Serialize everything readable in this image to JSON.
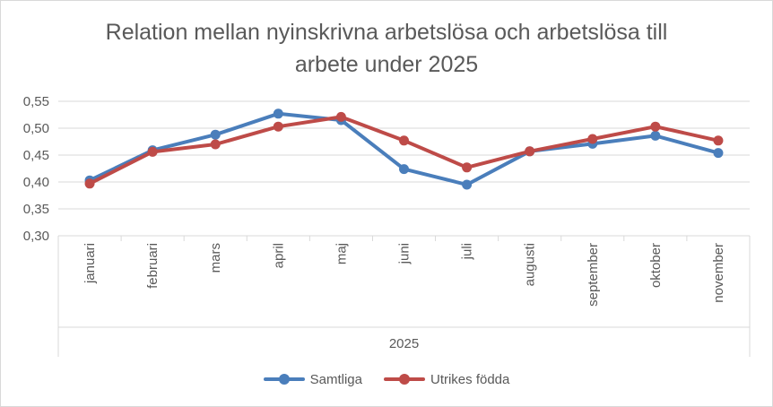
{
  "chart_data": {
    "type": "line",
    "title_line1": "Relation mellan nyinskrivna arbetslösa och arbetslösa till",
    "title_line2": "arbete under 2025",
    "xlabel": "2025",
    "ylabel": "",
    "ylim": [
      0.3,
      0.55
    ],
    "yticks": [
      "0,30",
      "0,35",
      "0,40",
      "0,45",
      "0,50",
      "0,55"
    ],
    "grid": true,
    "legend_position": "bottom",
    "categories": [
      "januari",
      "februari",
      "mars",
      "april",
      "maj",
      "juni",
      "juli",
      "augusti",
      "september",
      "oktober",
      "november"
    ],
    "series": [
      {
        "name": "Samtliga",
        "color": "#4a7ebb",
        "values": [
          0.403,
          0.459,
          0.488,
          0.527,
          0.515,
          0.424,
          0.395,
          0.457,
          0.471,
          0.486,
          0.454
        ]
      },
      {
        "name": "Utrikes födda",
        "color": "#be4b48",
        "values": [
          0.397,
          0.456,
          0.47,
          0.503,
          0.521,
          0.477,
          0.427,
          0.457,
          0.48,
          0.503,
          0.477
        ]
      }
    ]
  }
}
